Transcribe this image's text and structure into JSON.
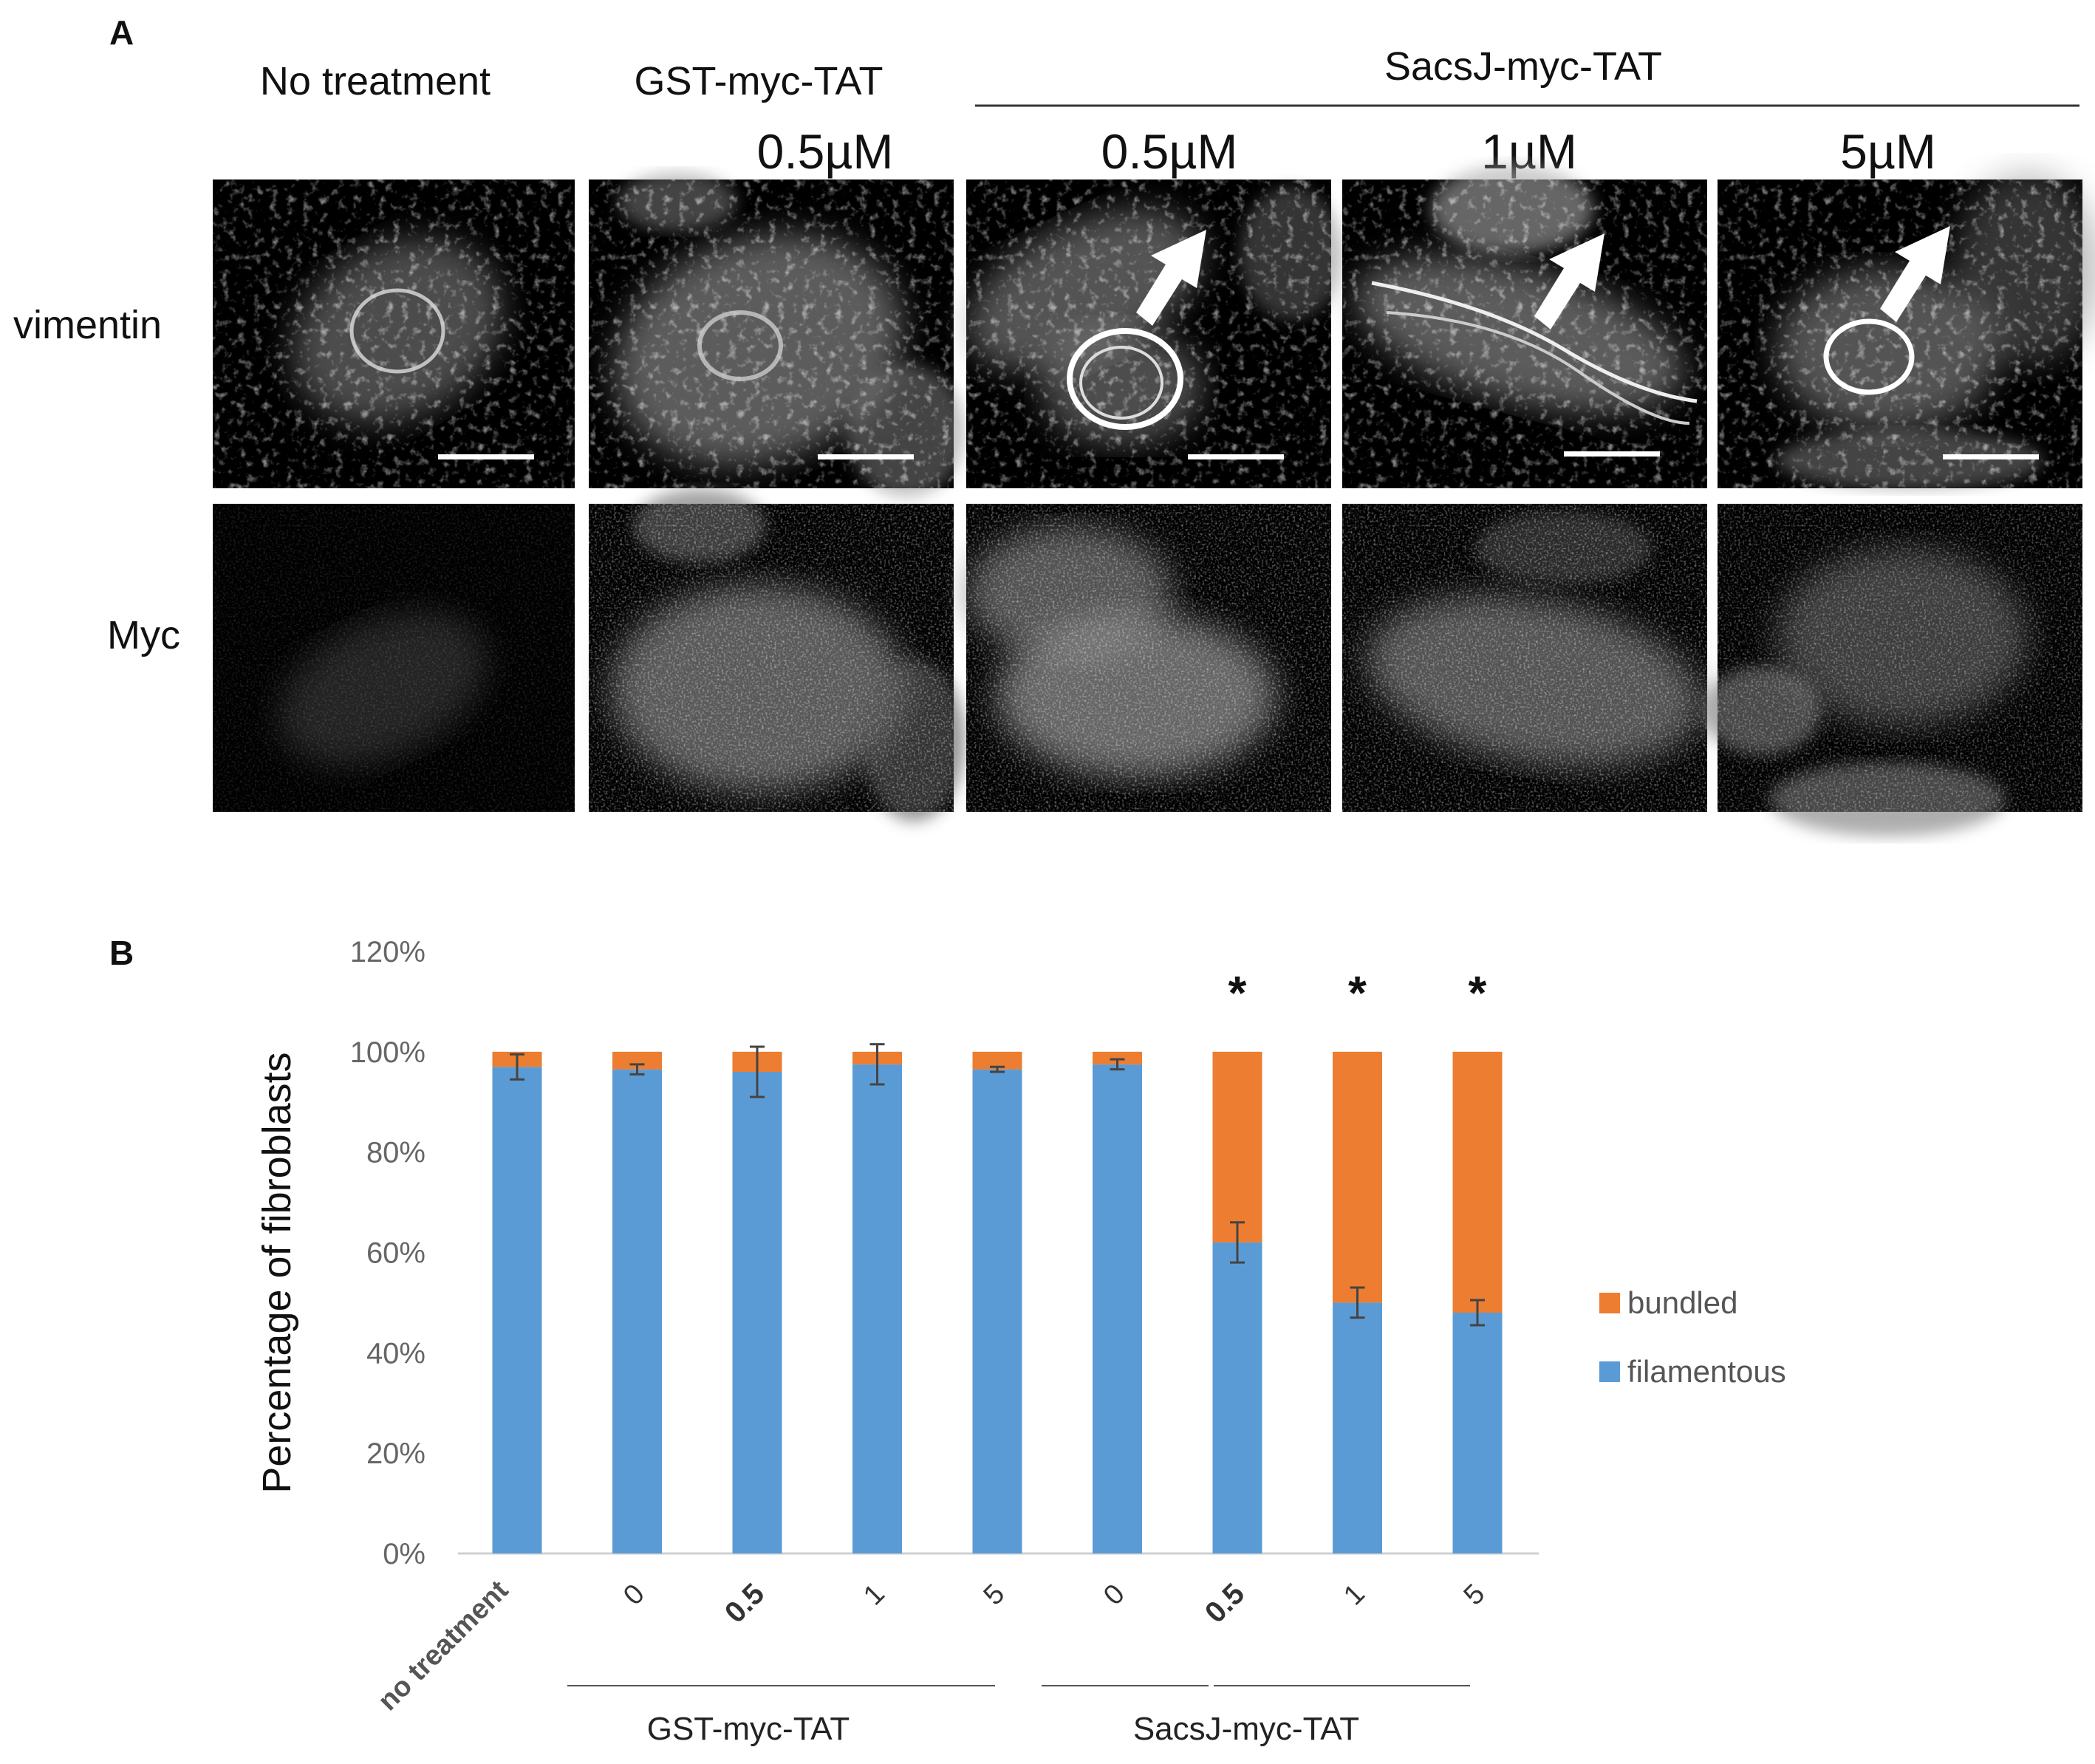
{
  "figure": {
    "panel_a": {
      "label": "A",
      "column_headers": {
        "no_treatment": "No treatment",
        "gst": "GST-myc-TAT",
        "sacsj": "SacsJ-myc-TAT"
      },
      "concentrations": [
        "0.5µM",
        "0.5µM",
        "1µM",
        "5µM"
      ],
      "row_labels": [
        "vimentin",
        "Myc"
      ]
    },
    "panel_b": {
      "label": "B"
    }
  },
  "chart_data": {
    "type": "bar",
    "stacked": true,
    "ylabel": "Percentage of fibroblasts",
    "ylim": [
      0,
      1.2
    ],
    "yticks": [
      "0%",
      "20%",
      "40%",
      "60%",
      "80%",
      "100%",
      "120%"
    ],
    "categories": [
      "no treatment",
      "0",
      "0.5",
      "1",
      "5",
      "0",
      "0.5",
      "1",
      "5"
    ],
    "bold_categories": [
      2,
      6
    ],
    "group_labels": [
      "GST-myc-TAT",
      "SacsJ-myc-TAT"
    ],
    "series": [
      {
        "name": "filamentous",
        "color": "#5b9bd5",
        "values": [
          0.97,
          0.965,
          0.96,
          0.975,
          0.965,
          0.975,
          0.62,
          0.5,
          0.48
        ],
        "errors": [
          0.025,
          0.01,
          0.05,
          0.04,
          0.005,
          0.01,
          0.04,
          0.03,
          0.025
        ]
      },
      {
        "name": "bundled",
        "color": "#ed7d31",
        "values": [
          0.03,
          0.035,
          0.04,
          0.025,
          0.035,
          0.025,
          0.38,
          0.5,
          0.52
        ]
      }
    ],
    "significance": [
      "",
      "",
      "",
      "",
      "",
      "",
      "*",
      "*",
      "*"
    ],
    "legend_placement": "right"
  }
}
